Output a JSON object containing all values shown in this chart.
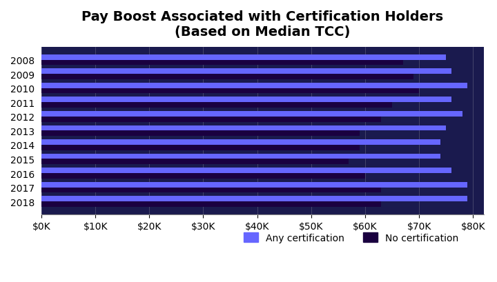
{
  "title": "Pay Boost Associated with Certification Holders\n(Based on Median TCC)",
  "years": [
    2008,
    2009,
    2010,
    2011,
    2012,
    2013,
    2014,
    2015,
    2016,
    2017,
    2018
  ],
  "any_cert": [
    75000,
    76000,
    79000,
    76000,
    78000,
    75000,
    74000,
    74000,
    76000,
    79000,
    79000
  ],
  "no_cert": [
    67000,
    69000,
    70000,
    65000,
    63000,
    59000,
    59000,
    57000,
    60000,
    63000,
    63000
  ],
  "any_cert_color": "#6666ff",
  "no_cert_color": "#1a0040",
  "plot_bg_color": "#1a1a4e",
  "figure_bg_color": "#ffffff",
  "xlim": [
    0,
    82000
  ],
  "xticks": [
    0,
    10000,
    20000,
    30000,
    40000,
    50000,
    60000,
    70000,
    80000
  ],
  "xticklabels": [
    "$0K",
    "$10K",
    "$20K",
    "$30K",
    "$40K",
    "$50K",
    "$60K",
    "$70K",
    "$80K"
  ],
  "bar_height": 0.38,
  "legend_labels": [
    "Any certification",
    "No certification"
  ],
  "title_fontsize": 14,
  "tick_fontsize": 10,
  "legend_fontsize": 10
}
